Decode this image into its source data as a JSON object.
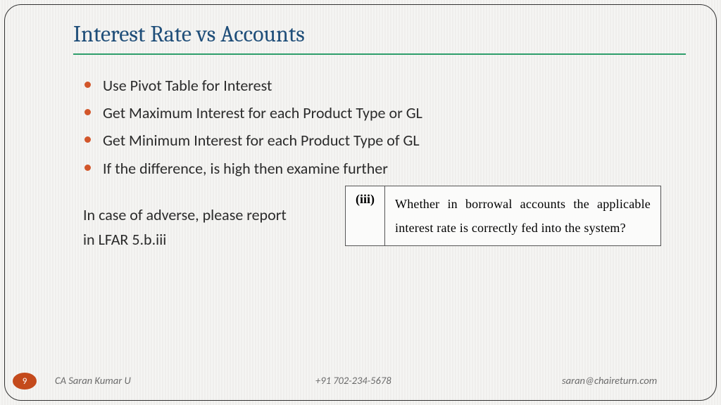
{
  "title": "Interest Rate vs Accounts",
  "title_color": "#1f4e79",
  "underline_color": "#2e9e6b",
  "bullet_color": "#d2562a",
  "text_color": "#2b2b2b",
  "bullets": [
    "Use Pivot Table for Interest",
    "Get Maximum Interest for each Product Type or GL",
    "Get Minimum Interest for each Product Type of GL",
    "If the difference, is high then examine further"
  ],
  "note_lines": [
    "In case of adverse, please report",
    "in LFAR 5.b.iii"
  ],
  "reference": {
    "number": "(iii)",
    "text": "Whether in borrowal accounts the applicable interest rate is correctly fed into the system?"
  },
  "footer": {
    "page": "9",
    "author": "CA Saran Kumar U",
    "phone": "+91 702-234-5678",
    "email": "saran@chaireturn.com",
    "badge_color": "#c44a1c"
  }
}
